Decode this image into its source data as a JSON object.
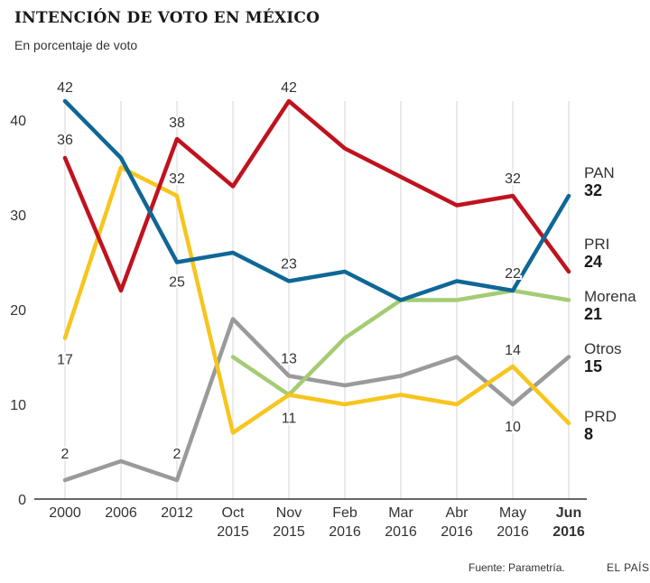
{
  "header": {
    "title": "INTENCIÓN DE VOTO EN MÉXICO",
    "subtitle": "En porcentaje de voto"
  },
  "footer": {
    "source": "Fuente: Parametría.",
    "brand": "EL PAÍS"
  },
  "colors": {
    "PAN": "#0f6796",
    "PRI": "#c0121f",
    "Morena": "#a4cc73",
    "Otros": "#9a9a9a",
    "PRD": "#f7c51d",
    "grid": "#d5d5d5",
    "axis": "#333333"
  },
  "chart_data": {
    "type": "line",
    "categories": [
      [
        "2000"
      ],
      [
        "2006"
      ],
      [
        "2012"
      ],
      [
        "Oct",
        "2015"
      ],
      [
        "Nov",
        "2015"
      ],
      [
        "Feb",
        "2016"
      ],
      [
        "Mar",
        "2016"
      ],
      [
        "Abr",
        "2016"
      ],
      [
        "May",
        "2016"
      ],
      [
        "Jun",
        "2016"
      ]
    ],
    "bold_category_index": 9,
    "ylim": [
      0,
      42
    ],
    "yticks": [
      0,
      10,
      20,
      30,
      40
    ],
    "grid": "vertical",
    "legend": "right-end",
    "series": [
      {
        "name": "PAN",
        "values": [
          42,
          36,
          25,
          26,
          23,
          24,
          21,
          23,
          22,
          32
        ],
        "labels": [
          {
            "i": 0,
            "text": "42"
          },
          {
            "i": 2,
            "text": "25"
          },
          {
            "i": 4,
            "text": "23"
          },
          {
            "i": 8,
            "text": "22"
          }
        ]
      },
      {
        "name": "PRI",
        "values": [
          36,
          22,
          38,
          33,
          42,
          37,
          34,
          31,
          32,
          24
        ],
        "labels": [
          {
            "i": 0,
            "text": "36"
          },
          {
            "i": 2,
            "text": "38"
          },
          {
            "i": 4,
            "text": "42"
          },
          {
            "i": 8,
            "text": "32"
          }
        ]
      },
      {
        "name": "Morena",
        "values": [
          null,
          null,
          null,
          15,
          11,
          17,
          21,
          21,
          22,
          21
        ],
        "labels": []
      },
      {
        "name": "Otros",
        "values": [
          2,
          4,
          2,
          19,
          13,
          12,
          13,
          15,
          10,
          15
        ],
        "labels": [
          {
            "i": 0,
            "text": "2"
          },
          {
            "i": 2,
            "text": "2"
          },
          {
            "i": 4,
            "text": "13"
          },
          {
            "i": 8,
            "text": "10"
          }
        ]
      },
      {
        "name": "PRD",
        "values": [
          17,
          35,
          32,
          7,
          11,
          10,
          11,
          10,
          14,
          8
        ],
        "labels": [
          {
            "i": 0,
            "text": "17"
          },
          {
            "i": 2,
            "text": "32"
          },
          {
            "i": 4,
            "text": "11"
          },
          {
            "i": 8,
            "text": "14"
          }
        ]
      }
    ],
    "end_labels": [
      {
        "series": "PAN",
        "name": "PAN",
        "value": "32"
      },
      {
        "series": "PRI",
        "name": "PRI",
        "value": "24"
      },
      {
        "series": "Morena",
        "name": "Morena",
        "value": "21"
      },
      {
        "series": "Otros",
        "name": "Otros",
        "value": "15"
      },
      {
        "series": "PRD",
        "name": "PRD",
        "value": "8"
      }
    ]
  }
}
